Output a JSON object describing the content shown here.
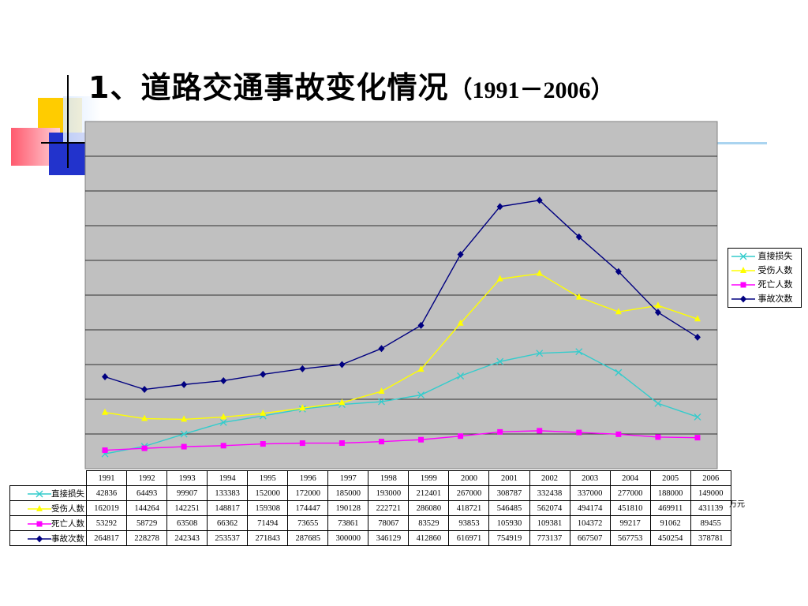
{
  "title": {
    "main": "1、道路交通事故变化情况",
    "years": "（1991－2006）"
  },
  "unit_label": "万元",
  "colors": {
    "plot_bg": "#c0c0c0",
    "直接损失": "#33cccc",
    "受伤人数": "#ffff00",
    "死亡人数": "#ff00ff",
    "事故次数": "#000080"
  },
  "chart_data": {
    "type": "line",
    "categories": [
      "1991",
      "1992",
      "1993",
      "1994",
      "1995",
      "1996",
      "1997",
      "1998",
      "1999",
      "2000",
      "2001",
      "2002",
      "2003",
      "2004",
      "2005",
      "2006"
    ],
    "series": [
      {
        "name": "直接损失",
        "marker": "x",
        "color": "#33cccc",
        "values": [
          42836,
          64493,
          99907,
          133383,
          152000,
          172000,
          185000,
          193000,
          212401,
          267000,
          308787,
          332438,
          337000,
          277000,
          188000,
          149000
        ]
      },
      {
        "name": "受伤人数",
        "marker": "triangle",
        "color": "#ffff00",
        "values": [
          162019,
          144264,
          142251,
          148817,
          159308,
          174447,
          190128,
          222721,
          286080,
          418721,
          546485,
          562074,
          494174,
          451810,
          469911,
          431139
        ]
      },
      {
        "name": "死亡人数",
        "marker": "square",
        "color": "#ff00ff",
        "values": [
          53292,
          58729,
          63508,
          66362,
          71494,
          73655,
          73861,
          78067,
          83529,
          93853,
          105930,
          109381,
          104372,
          99217,
          91062,
          89455
        ]
      },
      {
        "name": "事故次数",
        "marker": "diamond",
        "color": "#000080",
        "values": [
          264817,
          228278,
          242343,
          253537,
          271843,
          287685,
          300000,
          346129,
          412860,
          616971,
          754919,
          773137,
          667507,
          567753,
          450254,
          378781
        ]
      }
    ],
    "legend_position": "right",
    "grid": true,
    "table_below": true
  }
}
